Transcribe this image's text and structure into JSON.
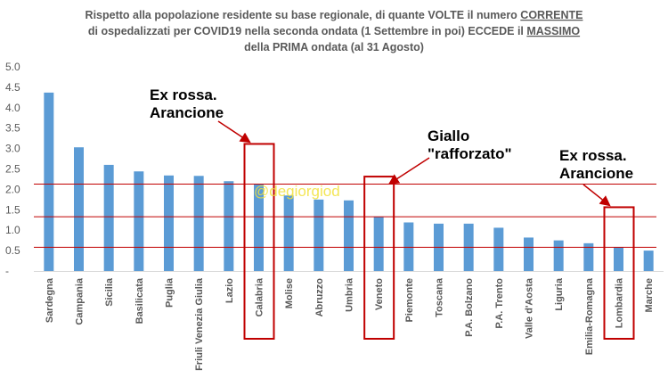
{
  "chart_data": {
    "type": "bar",
    "title_lines": [
      {
        "before": "Rispetto alla popolazione residente su base regionale, di quante VOLTE il  numero ",
        "emph": "CORRENTE"
      },
      {
        "before": "di ospedalizzati per COVID19 nella seconda ondata (1 Settembre in poi) ECCEDE il ",
        "emph": "MASSIMO"
      },
      {
        "before": "della PRIMA ondata (al 31 Agosto)",
        "emph": ""
      }
    ],
    "categories": [
      "Sardegna",
      "Campania",
      "Sicilia",
      "Basilicata",
      "Puglia",
      "Friuli Venezia Giulia",
      "Lazio",
      "Calabria",
      "Molise",
      "Abruzzo",
      "Umbria",
      "Veneto",
      "Piemonte",
      "Toscana",
      "P.A. Bolzano",
      "P.A. Trento",
      "Valle d'Aosta",
      "Liguria",
      "Emilia-Romagna",
      "Lombardia",
      "Marche"
    ],
    "values": [
      4.37,
      3.03,
      2.6,
      2.44,
      2.34,
      2.33,
      2.2,
      2.13,
      1.85,
      1.75,
      1.73,
      1.33,
      1.19,
      1.16,
      1.16,
      1.06,
      0.82,
      0.75,
      0.68,
      0.58,
      0.5
    ],
    "ylim": [
      0,
      5.0
    ],
    "yticks": [
      0,
      0.5,
      1.0,
      1.5,
      2.0,
      2.5,
      3.0,
      3.5,
      4.0,
      4.5,
      5.0
    ],
    "ytick_labels": [
      "-",
      "0.5",
      "1.0",
      "1.5",
      "2.0",
      "2.5",
      "3.0",
      "3.5",
      "4.0",
      "4.5",
      "5.0"
    ],
    "bar_color": "#5b9bd5",
    "grid": false,
    "reference_lines": [
      2.13,
      1.33,
      0.58
    ],
    "reference_line_color": "#c00000",
    "highlighted_categories": [
      "Calabria",
      "Veneto",
      "Lombardia"
    ],
    "highlight_color": "#c00000",
    "annotations": [
      {
        "lines": [
          "Ex rossa.",
          "Arancione"
        ],
        "target": "Calabria"
      },
      {
        "lines": [
          "Giallo",
          "\"rafforzato\""
        ],
        "target": "Veneto"
      },
      {
        "lines": [
          "Ex rossa.",
          "Arancione"
        ],
        "target": "Lombardia"
      }
    ],
    "watermark": "@degiorgiod"
  }
}
